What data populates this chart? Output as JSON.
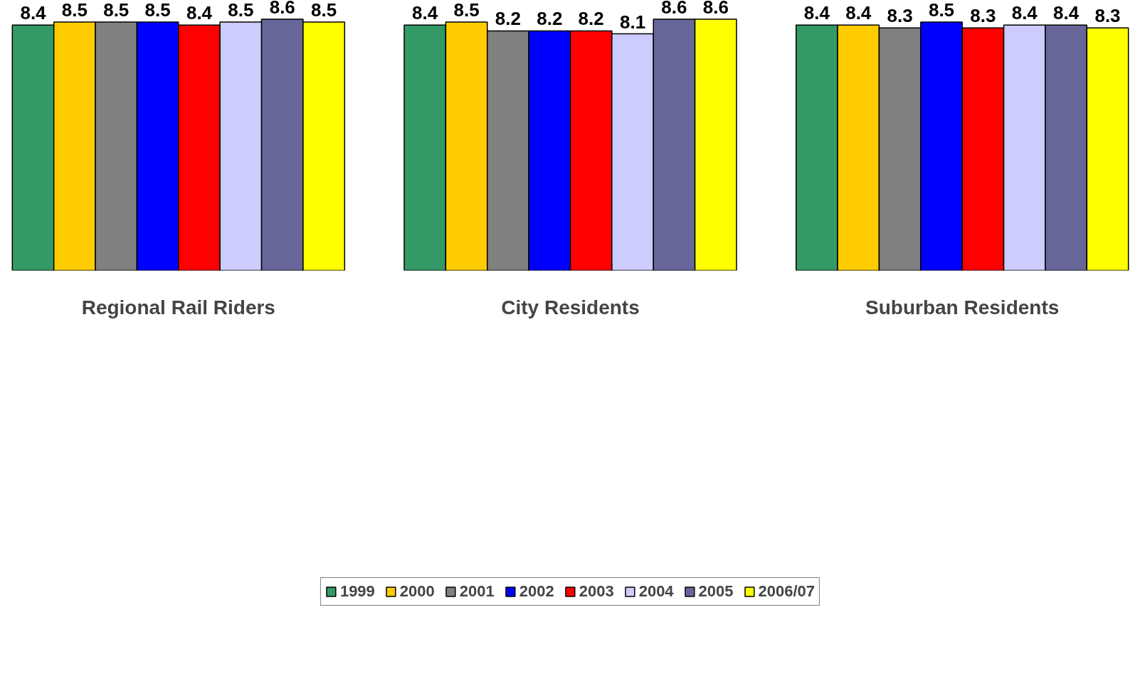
{
  "chart_data": {
    "type": "bar",
    "categories": [
      "Regional Rail Riders",
      "City Residents",
      "Suburban Residents"
    ],
    "series": [
      {
        "name": "1999",
        "color": "#339966",
        "values": [
          8.4,
          8.4,
          8.4
        ]
      },
      {
        "name": "2000",
        "color": "#ffcc00",
        "values": [
          8.5,
          8.5,
          8.4
        ]
      },
      {
        "name": "2001",
        "color": "#808080",
        "values": [
          8.5,
          8.2,
          8.3
        ]
      },
      {
        "name": "2002",
        "color": "#0000ff",
        "values": [
          8.5,
          8.2,
          8.5
        ]
      },
      {
        "name": "2003",
        "color": "#ff0000",
        "values": [
          8.4,
          8.2,
          8.3
        ]
      },
      {
        "name": "2004",
        "color": "#ccccff",
        "values": [
          8.5,
          8.1,
          8.4
        ]
      },
      {
        "name": "2005",
        "color": "#666699",
        "values": [
          8.6,
          8.6,
          8.4
        ]
      },
      {
        "name": "2006/07",
        "color": "#ffff00",
        "values": [
          8.5,
          8.6,
          8.3
        ]
      }
    ],
    "data_labels": true,
    "grid": false,
    "legend": "bottom"
  }
}
